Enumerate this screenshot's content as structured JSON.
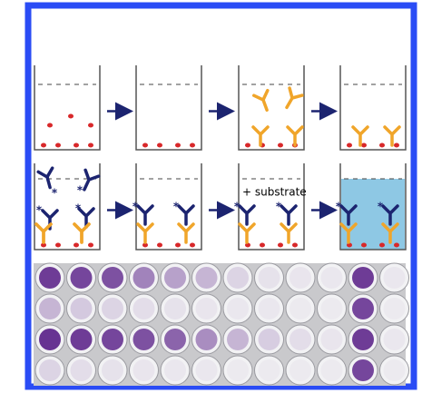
{
  "annotation": "+ substrate"
}
